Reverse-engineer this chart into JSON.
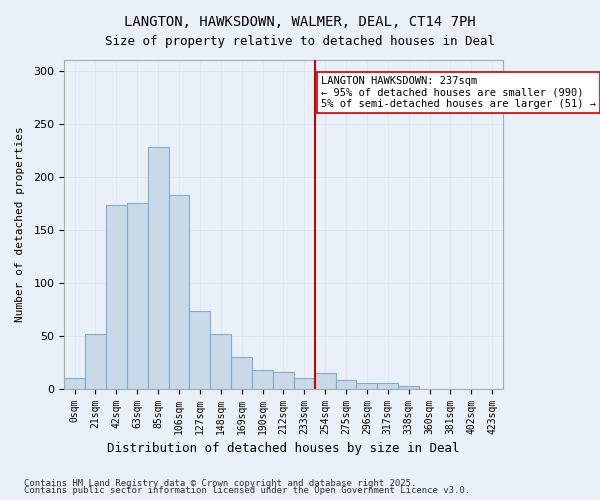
{
  "title1": "LANGTON, HAWKSDOWN, WALMER, DEAL, CT14 7PH",
  "title2": "Size of property relative to detached houses in Deal",
  "xlabel": "Distribution of detached houses by size in Deal",
  "ylabel": "Number of detached properties",
  "bar_labels": [
    "0sqm",
    "21sqm",
    "42sqm",
    "63sqm",
    "85sqm",
    "106sqm",
    "127sqm",
    "148sqm",
    "169sqm",
    "190sqm",
    "212sqm",
    "233sqm",
    "254sqm",
    "275sqm",
    "296sqm",
    "317sqm",
    "338sqm",
    "360sqm",
    "381sqm",
    "402sqm",
    "423sqm"
  ],
  "bar_heights": [
    10,
    52,
    173,
    175,
    228,
    183,
    73,
    52,
    30,
    18,
    16,
    10,
    15,
    8,
    5,
    5,
    3,
    0,
    0,
    0,
    0
  ],
  "bar_color": "#c9d9e8",
  "bar_edge_color": "#7faecb",
  "vline_x": 11.5,
  "vline_color": "#cc0000",
  "annotation_text": "LANGTON HAWKSDOWN: 237sqm\n← 95% of detached houses are smaller (990)\n5% of semi-detached houses are larger (51) →",
  "annotation_box_color": "#ffffff",
  "annotation_box_edge": "#cc0000",
  "ylim": [
    0,
    310
  ],
  "yticks": [
    0,
    50,
    100,
    150,
    200,
    250,
    300
  ],
  "grid_color": "#dce6f0",
  "bg_color": "#eaf0f8",
  "footnote1": "Contains HM Land Registry data © Crown copyright and database right 2025.",
  "footnote2": "Contains public sector information licensed under the Open Government Licence v3.0."
}
